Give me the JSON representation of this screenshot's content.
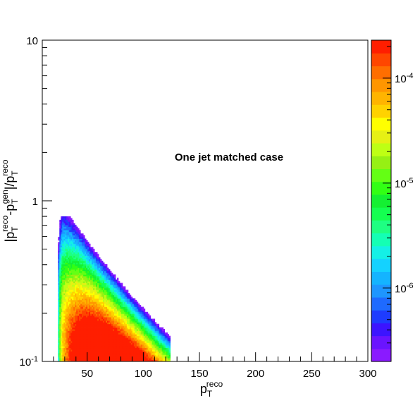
{
  "chart_data": {
    "type": "heatmap",
    "title": "",
    "annotation": "One jet matched case",
    "xlabel": {
      "main": "p",
      "sub": "T",
      "sup": "reco"
    },
    "ylabel": {
      "parts": [
        {
          "t": "|p",
          "k": "n"
        },
        {
          "t": "T",
          "k": "sub"
        },
        {
          "t": "reco",
          "k": "sup"
        },
        {
          "t": "-p",
          "k": "n"
        },
        {
          "t": "T",
          "k": "sub"
        },
        {
          "t": "gen",
          "k": "sup"
        },
        {
          "t": "|/p",
          "k": "n"
        },
        {
          "t": "T",
          "k": "sub"
        },
        {
          "t": "reco",
          "k": "sup"
        }
      ]
    },
    "xlim": [
      10,
      300
    ],
    "ylim": [
      0.1,
      10
    ],
    "yscale": "log",
    "x_ticks": [
      {
        "v": 50,
        "label": "50"
      },
      {
        "v": 100,
        "label": "100"
      },
      {
        "v": 150,
        "label": "150"
      },
      {
        "v": 200,
        "label": "200"
      },
      {
        "v": 250,
        "label": "250"
      },
      {
        "v": 300,
        "label": "300"
      }
    ],
    "y_ticks": [
      {
        "v": 0.1,
        "label": "10",
        "sup": "-1"
      },
      {
        "v": 1,
        "label": "1",
        "sup": ""
      },
      {
        "v": 10,
        "label": "10",
        "sup": ""
      }
    ],
    "colorbar": {
      "scale": "log",
      "range": [
        2e-07,
        0.00023
      ],
      "ticks": [
        {
          "v": 1e-06,
          "label": "10",
          "sup": "-6"
        },
        {
          "v": 1e-05,
          "label": "10",
          "sup": "-5"
        },
        {
          "v": 0.0001,
          "label": "10",
          "sup": "-4"
        }
      ],
      "colors": [
        "#8a1aff",
        "#6a14ff",
        "#3c14ff",
        "#1e3cff",
        "#1e6aff",
        "#1e96ff",
        "#14b4ff",
        "#14d2ff",
        "#14f0e6",
        "#14ffb4",
        "#1eff82",
        "#14ff50",
        "#14f032",
        "#32ff14",
        "#64ff14",
        "#96f014",
        "#beff14",
        "#e6f014",
        "#ffff00",
        "#ffd200",
        "#ffb400",
        "#ff9600",
        "#ff6e00",
        "#ff4600",
        "#ff1e00"
      ]
    }
  }
}
